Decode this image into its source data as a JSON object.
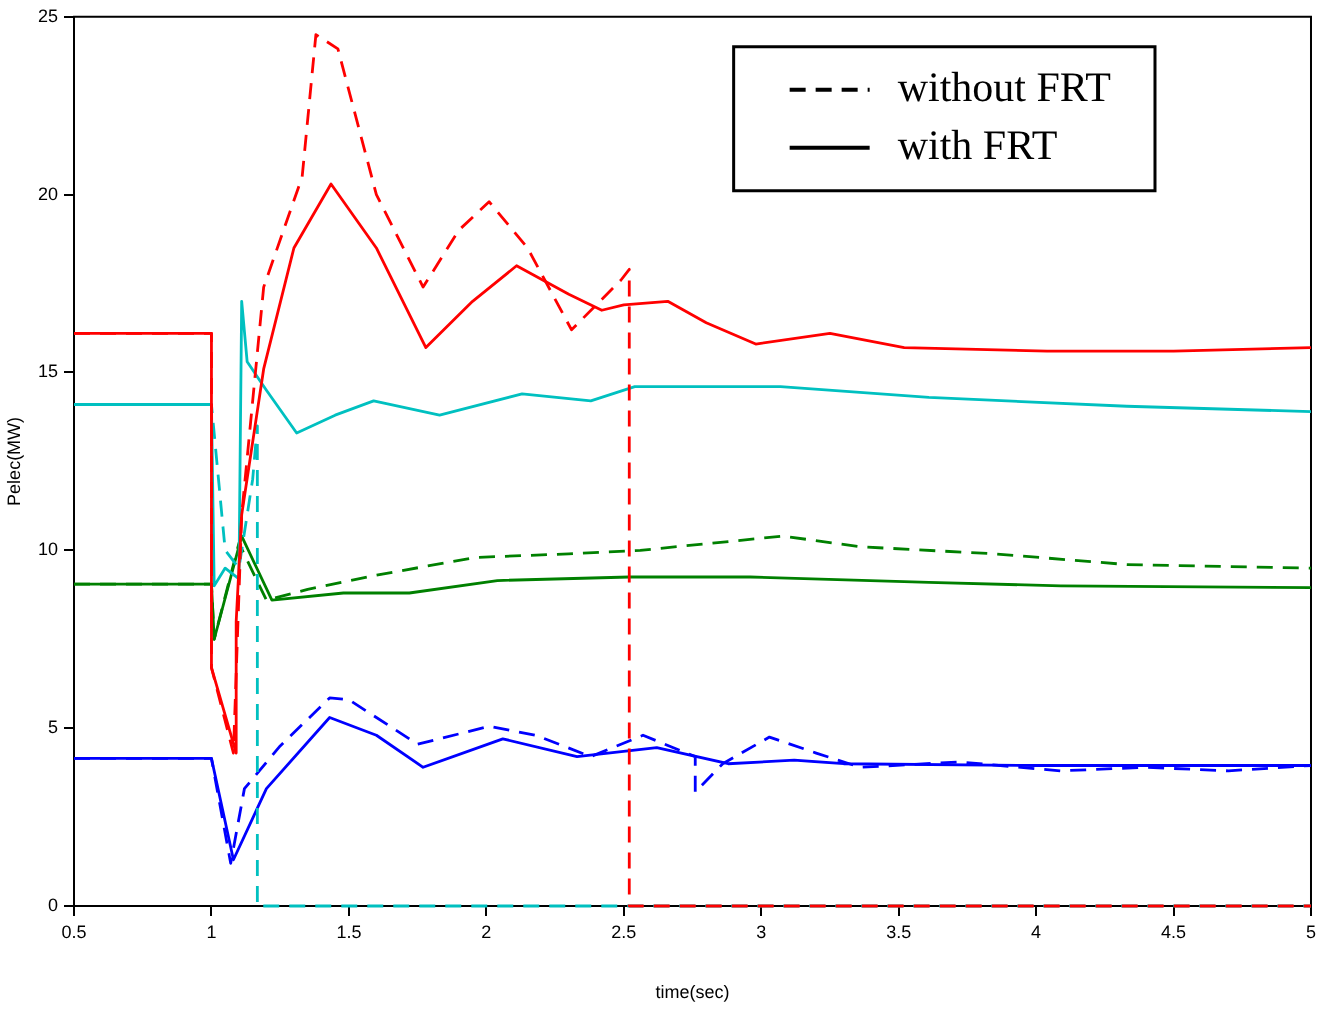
{
  "chart_data": {
    "type": "line",
    "xlabel": "time(sec)",
    "ylabel": "Pelec(MW)",
    "xlim": [
      0.5,
      5
    ],
    "xticks": [
      0.5,
      1,
      1.5,
      2,
      2.5,
      3,
      3.5,
      4,
      4.5,
      5
    ],
    "ylim": [
      0,
      25
    ],
    "yticks": [
      0,
      5,
      10,
      15,
      20,
      25
    ],
    "grid": false,
    "legend": "top right",
    "marker": "none",
    "series": [
      {
        "name": "without FRT",
        "color": "#000000",
        "line_style": "dashed"
      },
      {
        "name": "with FRT",
        "color": "#000000",
        "line_style": "solid"
      },
      {
        "color": "#ff0000",
        "line_style": "dashed",
        "x": [
          0.5,
          1.0,
          1.0,
          1.08,
          1.11,
          1.19,
          1.33,
          1.38,
          1.46,
          1.6,
          1.77,
          1.9,
          2.01,
          2.15,
          2.31,
          2.49,
          2.52,
          2.52,
          5
        ],
        "values": [
          16.1,
          16.1,
          6.7,
          4.3,
          11,
          17.4,
          20.5,
          24.5,
          24.1,
          20,
          17.4,
          19,
          19.8,
          18.5,
          16.2,
          17.6,
          17.9,
          0,
          0
        ]
      },
      {
        "color": "#ff0000",
        "line_style": "solid",
        "x": [
          0.5,
          1.0,
          1.0,
          1.09,
          1.09,
          1.11,
          1.19,
          1.3,
          1.435,
          1.6,
          1.78,
          1.95,
          2.11,
          2.3,
          2.42,
          2.5,
          2.66,
          2.8,
          2.98,
          3.25,
          3.52,
          4.04,
          4.5,
          5
        ],
        "values": [
          16.1,
          16.1,
          6.7,
          4.3,
          8,
          11,
          15.1,
          18.5,
          20.3,
          18.5,
          15.7,
          17,
          18,
          17.2,
          16.75,
          16.9,
          17,
          16.4,
          15.8,
          16.1,
          15.7,
          15.6,
          15.6,
          15.7
        ]
      },
      {
        "color": "#00c0c0",
        "line_style": "dashed",
        "x": [
          0.5,
          1.0,
          1.05,
          1.1,
          1.15,
          1.167,
          1.167,
          5
        ],
        "values": [
          14.1,
          14.1,
          10,
          9.5,
          12,
          13.5,
          0,
          0
        ]
      },
      {
        "color": "#00c0c0",
        "line_style": "solid",
        "x": [
          0.5,
          1.0,
          1.01,
          1.05,
          1.1,
          1.11,
          1.13,
          1.2,
          1.31,
          1.45,
          1.59,
          1.83,
          2.13,
          2.38,
          2.54,
          2.64,
          3.07,
          3.61,
          4.33,
          5
        ],
        "values": [
          14.1,
          14.1,
          9,
          9.5,
          9.2,
          17,
          15.3,
          14.5,
          13.3,
          13.8,
          14.2,
          13.8,
          14.4,
          14.2,
          14.6,
          14.6,
          14.6,
          14.3,
          14.05,
          13.9
        ]
      },
      {
        "color": "#008000",
        "line_style": "dashed",
        "x": [
          0.5,
          1.0,
          1.01,
          1.1,
          1.2,
          1.35,
          1.6,
          1.96,
          2.3,
          2.56,
          3.08,
          3.36,
          3.85,
          4.33,
          5
        ],
        "values": [
          9.05,
          9.05,
          7.5,
          10.2,
          8.6,
          8.9,
          9.3,
          9.8,
          9.9,
          10.0,
          10.4,
          10.1,
          9.9,
          9.6,
          9.5
        ]
      },
      {
        "color": "#008000",
        "line_style": "solid",
        "x": [
          0.5,
          1.0,
          1.01,
          1.11,
          1.22,
          1.48,
          1.72,
          2.04,
          2.52,
          2.96,
          3.61,
          4.09,
          5
        ],
        "values": [
          9.05,
          9.05,
          7.5,
          10.4,
          8.6,
          8.8,
          8.8,
          9.15,
          9.25,
          9.25,
          9.1,
          9.0,
          8.95
        ]
      },
      {
        "color": "#0000ff",
        "line_style": "dashed",
        "x": [
          0.5,
          1.0,
          1.07,
          1.12,
          1.25,
          1.43,
          1.5,
          1.75,
          2.01,
          2.18,
          2.38,
          2.57,
          2.76,
          2.76,
          2.86,
          3.03,
          3.2,
          3.36,
          3.72,
          4.09,
          4.4,
          4.7,
          5
        ],
        "values": [
          4.15,
          4.15,
          1.2,
          3.3,
          4.5,
          5.85,
          5.8,
          4.55,
          5.05,
          4.8,
          4.2,
          4.8,
          4.2,
          3.2,
          4.0,
          4.75,
          4.3,
          3.9,
          4.05,
          3.8,
          3.9,
          3.8,
          3.95
        ]
      },
      {
        "color": "#0000ff",
        "line_style": "solid",
        "x": [
          0.5,
          1.0,
          1.08,
          1.2,
          1.43,
          1.6,
          1.77,
          2.06,
          2.33,
          2.62,
          2.88,
          3.12,
          3.3,
          4.0,
          5
        ],
        "values": [
          4.15,
          4.15,
          1.3,
          3.3,
          5.3,
          4.8,
          3.9,
          4.7,
          4.2,
          4.45,
          4.0,
          4.1,
          4.0,
          3.95,
          3.95
        ]
      }
    ]
  }
}
